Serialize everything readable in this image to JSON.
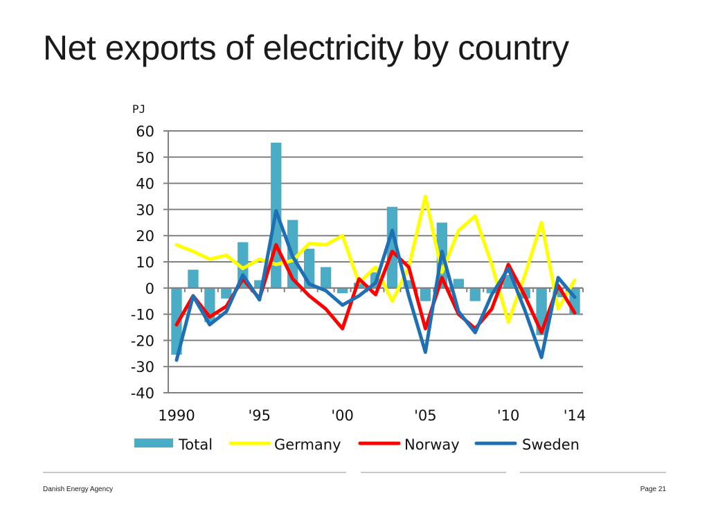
{
  "slide": {
    "title": "Net exports of electricity by country",
    "footer_left": "Danish Energy Agency",
    "footer_right": "Page 21"
  },
  "chart_data": {
    "type": "bar",
    "ylabel": "PJ",
    "ylim": [
      -40,
      60
    ],
    "yticks": [
      60,
      50,
      40,
      30,
      20,
      10,
      0,
      -10,
      -20,
      -30,
      -40
    ],
    "grid": true,
    "legend_position": "bottom",
    "x": [
      1990,
      1991,
      1992,
      1993,
      1994,
      1995,
      1996,
      1997,
      1998,
      1999,
      2000,
      2001,
      2002,
      2003,
      2004,
      2005,
      2006,
      2007,
      2008,
      2009,
      2010,
      2011,
      2012,
      2013,
      2014
    ],
    "xticks": [
      {
        "x": 1990,
        "label": "1990"
      },
      {
        "x": 1995,
        "label": "'95"
      },
      {
        "x": 2000,
        "label": "'00"
      },
      {
        "x": 2005,
        "label": "'05"
      },
      {
        "x": 2010,
        "label": "'10"
      },
      {
        "x": 2014,
        "label": "'14"
      }
    ],
    "series": [
      {
        "name": "Total",
        "kind": "bar",
        "color": "#4bacc6",
        "values": [
          -25.5,
          7,
          -13,
          -4,
          17.5,
          3,
          55.5,
          26,
          15,
          8,
          -2,
          2,
          6,
          31,
          3,
          -5,
          25,
          3.5,
          -5,
          -2,
          5,
          -4,
          -18,
          -3.5,
          -10
        ]
      },
      {
        "name": "Germany",
        "kind": "line",
        "color": "#ffff00",
        "values": [
          16.5,
          14,
          11,
          12.5,
          7.5,
          11,
          9,
          10.5,
          17,
          16.5,
          20,
          2,
          8,
          -5,
          8,
          35,
          6,
          22,
          27.5,
          9,
          -13,
          5,
          25,
          -8,
          3
        ]
      },
      {
        "name": "Norway",
        "kind": "line",
        "color": "#ff0000",
        "values": [
          -14,
          -3,
          -11,
          -7,
          3.5,
          -4,
          16.5,
          3.5,
          -3,
          -8,
          -15.5,
          3.5,
          -2.5,
          14,
          8,
          -15.5,
          4,
          -10,
          -15.5,
          -8,
          9,
          -3,
          -17,
          1,
          -9.5
        ]
      },
      {
        "name": "Sweden",
        "kind": "line",
        "color": "#1f6fb5",
        "values": [
          -27.5,
          -3,
          -14,
          -9,
          5,
          -4.5,
          29.5,
          12,
          1.5,
          -1,
          -6.5,
          -3,
          2,
          22,
          -3,
          -24.5,
          14,
          -9,
          -17,
          -2.5,
          7.5,
          -8.5,
          -26.5,
          4,
          -3.5
        ]
      }
    ]
  }
}
